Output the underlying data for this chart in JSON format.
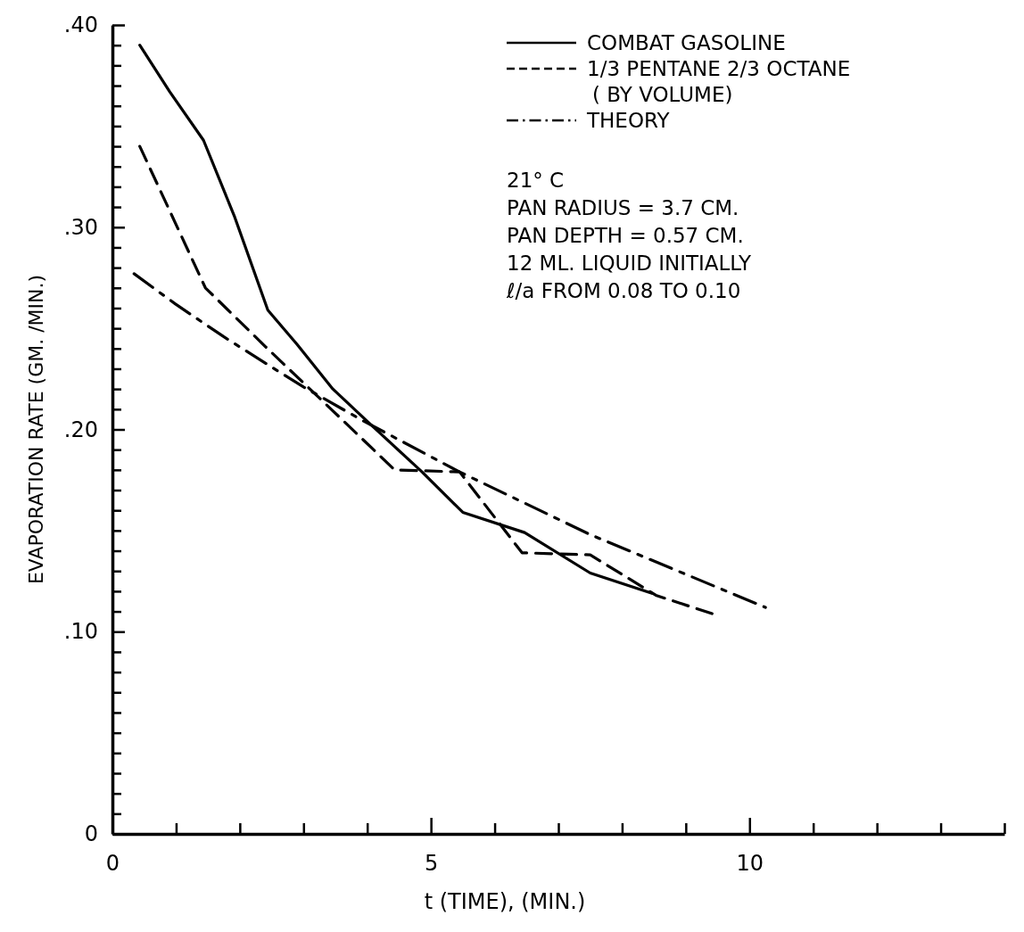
{
  "chart_data": {
    "type": "line",
    "xlabel": "t (TIME), (MIN.)",
    "ylabel": "EVAPORATION  RATE  (GM. /MIN.)",
    "xlim": [
      0,
      14
    ],
    "xticks": [
      0,
      {
        "value": 1,
        "label": null
      },
      {
        "value": 2,
        "label": null
      },
      {
        "value": 3,
        "label": null
      },
      {
        "value": 4,
        "label": null
      },
      5,
      {
        "value": 6,
        "label": null
      },
      {
        "value": 7,
        "label": null
      },
      {
        "value": 8,
        "label": null
      },
      {
        "value": 9,
        "label": null
      },
      10,
      {
        "value": 11,
        "label": null
      },
      {
        "value": 12,
        "label": null
      },
      {
        "value": 13,
        "label": null
      },
      {
        "value": 14,
        "label": null
      }
    ],
    "ylim": [
      0,
      0.4
    ],
    "yticks": [
      0,
      {
        "value": 0.01,
        "label": null
      },
      {
        "value": 0.02,
        "label": null
      },
      {
        "value": 0.03,
        "label": null
      },
      {
        "value": 0.04,
        "label": null
      },
      {
        "value": 0.05,
        "label": null
      },
      {
        "value": 0.06,
        "label": null
      },
      {
        "value": 0.07,
        "label": null
      },
      {
        "value": 0.08,
        "label": null
      },
      {
        "value": 0.09,
        "label": null
      },
      {
        "value": 0.1,
        "label": ".10"
      },
      {
        "value": 0.11,
        "label": null
      },
      {
        "value": 0.12,
        "label": null
      },
      {
        "value": 0.13,
        "label": null
      },
      {
        "value": 0.14,
        "label": null
      },
      {
        "value": 0.15,
        "label": null
      },
      {
        "value": 0.16,
        "label": null
      },
      {
        "value": 0.17,
        "label": null
      },
      {
        "value": 0.18,
        "label": null
      },
      {
        "value": 0.19,
        "label": null
      },
      {
        "value": 0.2,
        "label": ".20"
      },
      {
        "value": 0.21,
        "label": null
      },
      {
        "value": 0.22,
        "label": null
      },
      {
        "value": 0.23,
        "label": null
      },
      {
        "value": 0.24,
        "label": null
      },
      {
        "value": 0.25,
        "label": null
      },
      {
        "value": 0.26,
        "label": null
      },
      {
        "value": 0.27,
        "label": null
      },
      {
        "value": 0.28,
        "label": null
      },
      {
        "value": 0.29,
        "label": null
      },
      {
        "value": 0.3,
        "label": ".30"
      },
      {
        "value": 0.31,
        "label": null
      },
      {
        "value": 0.32,
        "label": null
      },
      {
        "value": 0.33,
        "label": null
      },
      {
        "value": 0.34,
        "label": null
      },
      {
        "value": 0.35,
        "label": null
      },
      {
        "value": 0.36,
        "label": null
      },
      {
        "value": 0.37,
        "label": null
      },
      {
        "value": 0.38,
        "label": null
      },
      {
        "value": 0.39,
        "label": null
      },
      {
        "value": 0.4,
        "label": ".40"
      }
    ],
    "legend": "top right",
    "series": [
      {
        "name": "COMBAT GASOLINE",
        "color": "#000000",
        "line_style": "solid",
        "x": [
          0.43,
          0.9,
          1.43,
          1.92,
          2.44,
          2.9,
          3.46,
          4.0,
          4.86,
          5.5,
          6.47,
          7.5,
          8.47
        ],
        "values": [
          0.39,
          0.367,
          0.343,
          0.305,
          0.259,
          0.242,
          0.22,
          0.204,
          0.179,
          0.159,
          0.149,
          0.129,
          0.119
        ]
      },
      {
        "name": "1/3 PENTANE  2/3 OCTANE\n( BY  VOLUME)",
        "color": "#000000",
        "line_style": "dashed",
        "x": [
          0.43,
          1.46,
          2.4,
          3.4,
          4.43,
          5.45,
          6.43,
          7.5,
          8.53,
          9.5
        ],
        "values": [
          0.34,
          0.27,
          0.241,
          0.211,
          0.18,
          0.179,
          0.139,
          0.138,
          0.118,
          0.108
        ]
      },
      {
        "name": "THEORY",
        "color": "#000000",
        "line_style": "dashdot",
        "x": [
          0.34,
          0.99,
          1.74,
          2.44,
          3.0,
          3.95,
          5.45,
          7.5,
          10.25
        ],
        "values": [
          0.277,
          0.262,
          0.246,
          0.232,
          0.221,
          0.204,
          0.179,
          0.148,
          0.112
        ]
      }
    ],
    "annotations": [
      "21° C",
      "PAN  RADIUS = 3.7 CM.",
      "PAN  DEPTH  = 0.57 CM.",
      "12  ML.  LIQUID  INITIALLY",
      "ℓ/a  FROM  0.08  TO  0.10"
    ]
  }
}
